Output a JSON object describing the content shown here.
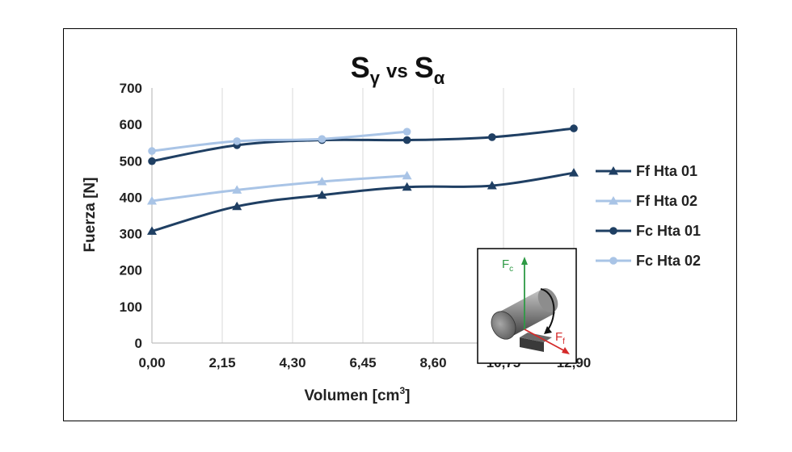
{
  "chart_data": {
    "type": "line",
    "title": {
      "main_a": "S",
      "sub_a": "γ",
      "vs": "vs",
      "main_b": "S",
      "sub_b": "α"
    },
    "xlabel": "Volumen [cm",
    "xlabel_sup": "3",
    "xlabel_end": "]",
    "ylabel": "Fuerza [N]",
    "xlim": [
      0,
      12.9
    ],
    "ylim": [
      0,
      700
    ],
    "xticks": [
      0,
      2.15,
      4.3,
      6.45,
      8.6,
      10.75,
      12.9
    ],
    "xtick_labels": [
      "0,00",
      "2,15",
      "4,30",
      "6,45",
      "8,60",
      "10,75",
      "12,90"
    ],
    "yticks": [
      0,
      100,
      200,
      300,
      400,
      500,
      600,
      700
    ],
    "ytick_labels": [
      "0",
      "100",
      "200",
      "300",
      "400",
      "500",
      "600",
      "700"
    ],
    "grid": "vertical",
    "legend_position": "right",
    "series": [
      {
        "name": "Ff Hta 01",
        "color": "#1f3f63",
        "marker": "triangle",
        "x": [
          0,
          2.6,
          5.2,
          7.8,
          10.4,
          12.9
        ],
        "y": [
          307,
          375,
          406,
          428,
          432,
          467
        ]
      },
      {
        "name": "Ff Hta 02",
        "color": "#a9c4e6",
        "marker": "triangle",
        "x": [
          0,
          2.6,
          5.2,
          7.8
        ],
        "y": [
          390,
          420,
          443,
          459
        ]
      },
      {
        "name": "Fc Hta 01",
        "color": "#1f3f63",
        "marker": "circle",
        "x": [
          0,
          2.6,
          5.2,
          7.8,
          10.4,
          12.9
        ],
        "y": [
          499,
          543,
          557,
          557,
          565,
          589
        ]
      },
      {
        "name": "Fc Hta 02",
        "color": "#a9c4e6",
        "marker": "circle",
        "x": [
          0,
          2.6,
          5.2,
          7.8
        ],
        "y": [
          527,
          554,
          560,
          580
        ]
      }
    ],
    "inset": {
      "force_c_main": "F",
      "force_c_sub": "c",
      "force_f_main": "F",
      "force_f_sub": "f",
      "color_c": "#2e9a45",
      "color_f": "#d42a2a"
    }
  }
}
